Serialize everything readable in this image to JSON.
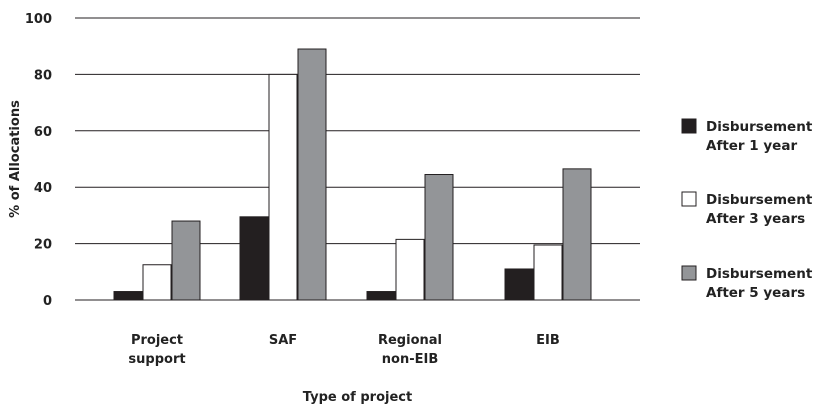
{
  "chart_data": {
    "type": "bar",
    "title": "",
    "xlabel": "Type of project",
    "ylabel": "% of Allocations",
    "ylim": [
      0,
      100
    ],
    "yticks": [
      0,
      20,
      40,
      60,
      80,
      100
    ],
    "grid": true,
    "legend_position": "right",
    "categories": [
      [
        "Project",
        "support"
      ],
      [
        "SAF"
      ],
      [
        "Regional",
        "non-EIB"
      ],
      [
        "EIB"
      ]
    ],
    "series": [
      {
        "name": [
          "Disbursement",
          "After 1 year"
        ],
        "color": "#231f20",
        "values": [
          3,
          29.5,
          3,
          11
        ]
      },
      {
        "name": [
          "Disbursement",
          "After 3 years"
        ],
        "color": "#ffffff",
        "values": [
          12.5,
          80,
          21.5,
          19.5
        ]
      },
      {
        "name": [
          "Disbursement",
          "After 5 years"
        ],
        "color": "#939598",
        "values": [
          28,
          89,
          44.5,
          46.5
        ]
      }
    ]
  }
}
